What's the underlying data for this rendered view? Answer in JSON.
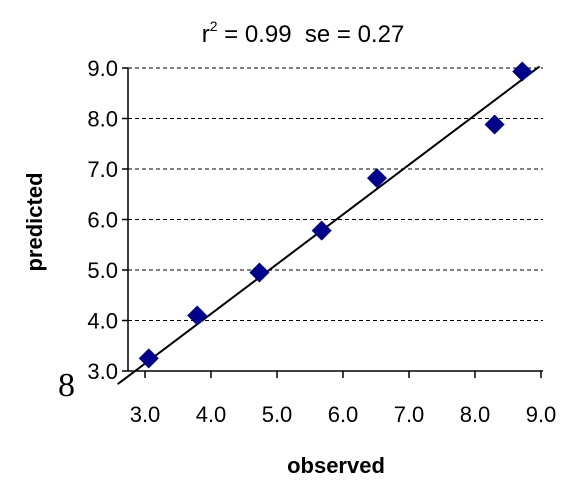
{
  "chart_data": {
    "type": "scatter",
    "title": {
      "r_symbol": "r",
      "r_exponent": "2",
      "rest": " = 0.99  se = 0.27"
    },
    "xlabel": "observed",
    "ylabel": "predicted",
    "xlim": [
      3.0,
      9.0
    ],
    "ylim": [
      3.0,
      9.0
    ],
    "x_ticks": [
      "3.0",
      "4.0",
      "5.0",
      "6.0",
      "7.0",
      "8.0",
      "9.0"
    ],
    "y_ticks": [
      "3.0",
      "4.0",
      "5.0",
      "6.0",
      "7.0",
      "8.0",
      "9.0"
    ],
    "grid": "horizontal dashed",
    "marker": "diamond",
    "marker_color": "#00008b",
    "line_color": "#000000",
    "points": [
      {
        "x": 3.3,
        "y": 3.25
      },
      {
        "x": 4.0,
        "y": 4.1
      },
      {
        "x": 4.9,
        "y": 4.95
      },
      {
        "x": 5.8,
        "y": 5.78
      },
      {
        "x": 6.6,
        "y": 6.82
      },
      {
        "x": 8.3,
        "y": 7.88
      },
      {
        "x": 8.7,
        "y": 8.93
      }
    ],
    "fit_line": {
      "x_start": 2.85,
      "y_start": 2.74,
      "x_end": 8.95,
      "y_end": 9.03
    }
  },
  "side_mark": "8"
}
